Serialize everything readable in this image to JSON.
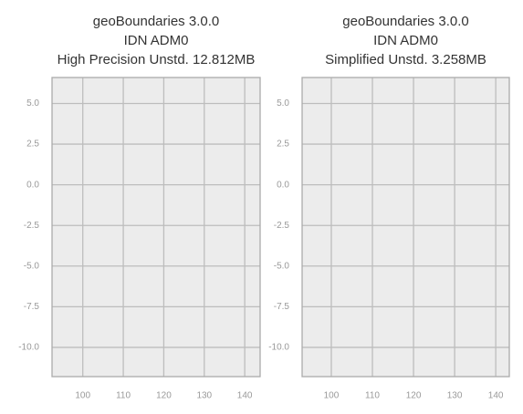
{
  "chart_data": [
    {
      "type": "map",
      "title": [
        "geoBoundaries 3.0.0",
        "IDN ADM0",
        "High Precision Unstd. 12.812MB"
      ],
      "color": "#f26b6b",
      "grid": true,
      "xlim": [
        92.4,
        143.8
      ],
      "ylim": [
        -11.8,
        6.6
      ],
      "xticks": [
        100,
        110,
        120,
        130,
        140
      ],
      "yticks": [
        {
          "value": 5,
          "label": "5.0"
        },
        {
          "value": 2.5,
          "label": "2.5"
        },
        {
          "value": 0,
          "label": "0.0"
        },
        {
          "value": -2.5,
          "label": "-2.5"
        },
        {
          "value": -5,
          "label": "-5.0"
        },
        {
          "value": -7.5,
          "label": "-7.5"
        },
        {
          "value": -10,
          "label": "-10.0"
        }
      ]
    },
    {
      "type": "map",
      "title": [
        "geoBoundaries 3.0.0",
        "IDN ADM0",
        "Simplified Unstd. 3.258MB"
      ],
      "color": "#f26b6b",
      "grid": true,
      "xlim": [
        92.9,
        143.3
      ],
      "ylim": [
        -11.8,
        6.6
      ],
      "xticks": [
        100,
        110,
        120,
        130,
        140
      ],
      "yticks": [
        {
          "value": 5,
          "label": "5.0"
        },
        {
          "value": 2.5,
          "label": "2.5"
        },
        {
          "value": 0,
          "label": "0.0"
        },
        {
          "value": -2.5,
          "label": "-2.5"
        },
        {
          "value": -5,
          "label": "-5.0"
        },
        {
          "value": -7.5,
          "label": "-7.5"
        },
        {
          "value": -10,
          "label": "-10.0"
        }
      ]
    }
  ]
}
